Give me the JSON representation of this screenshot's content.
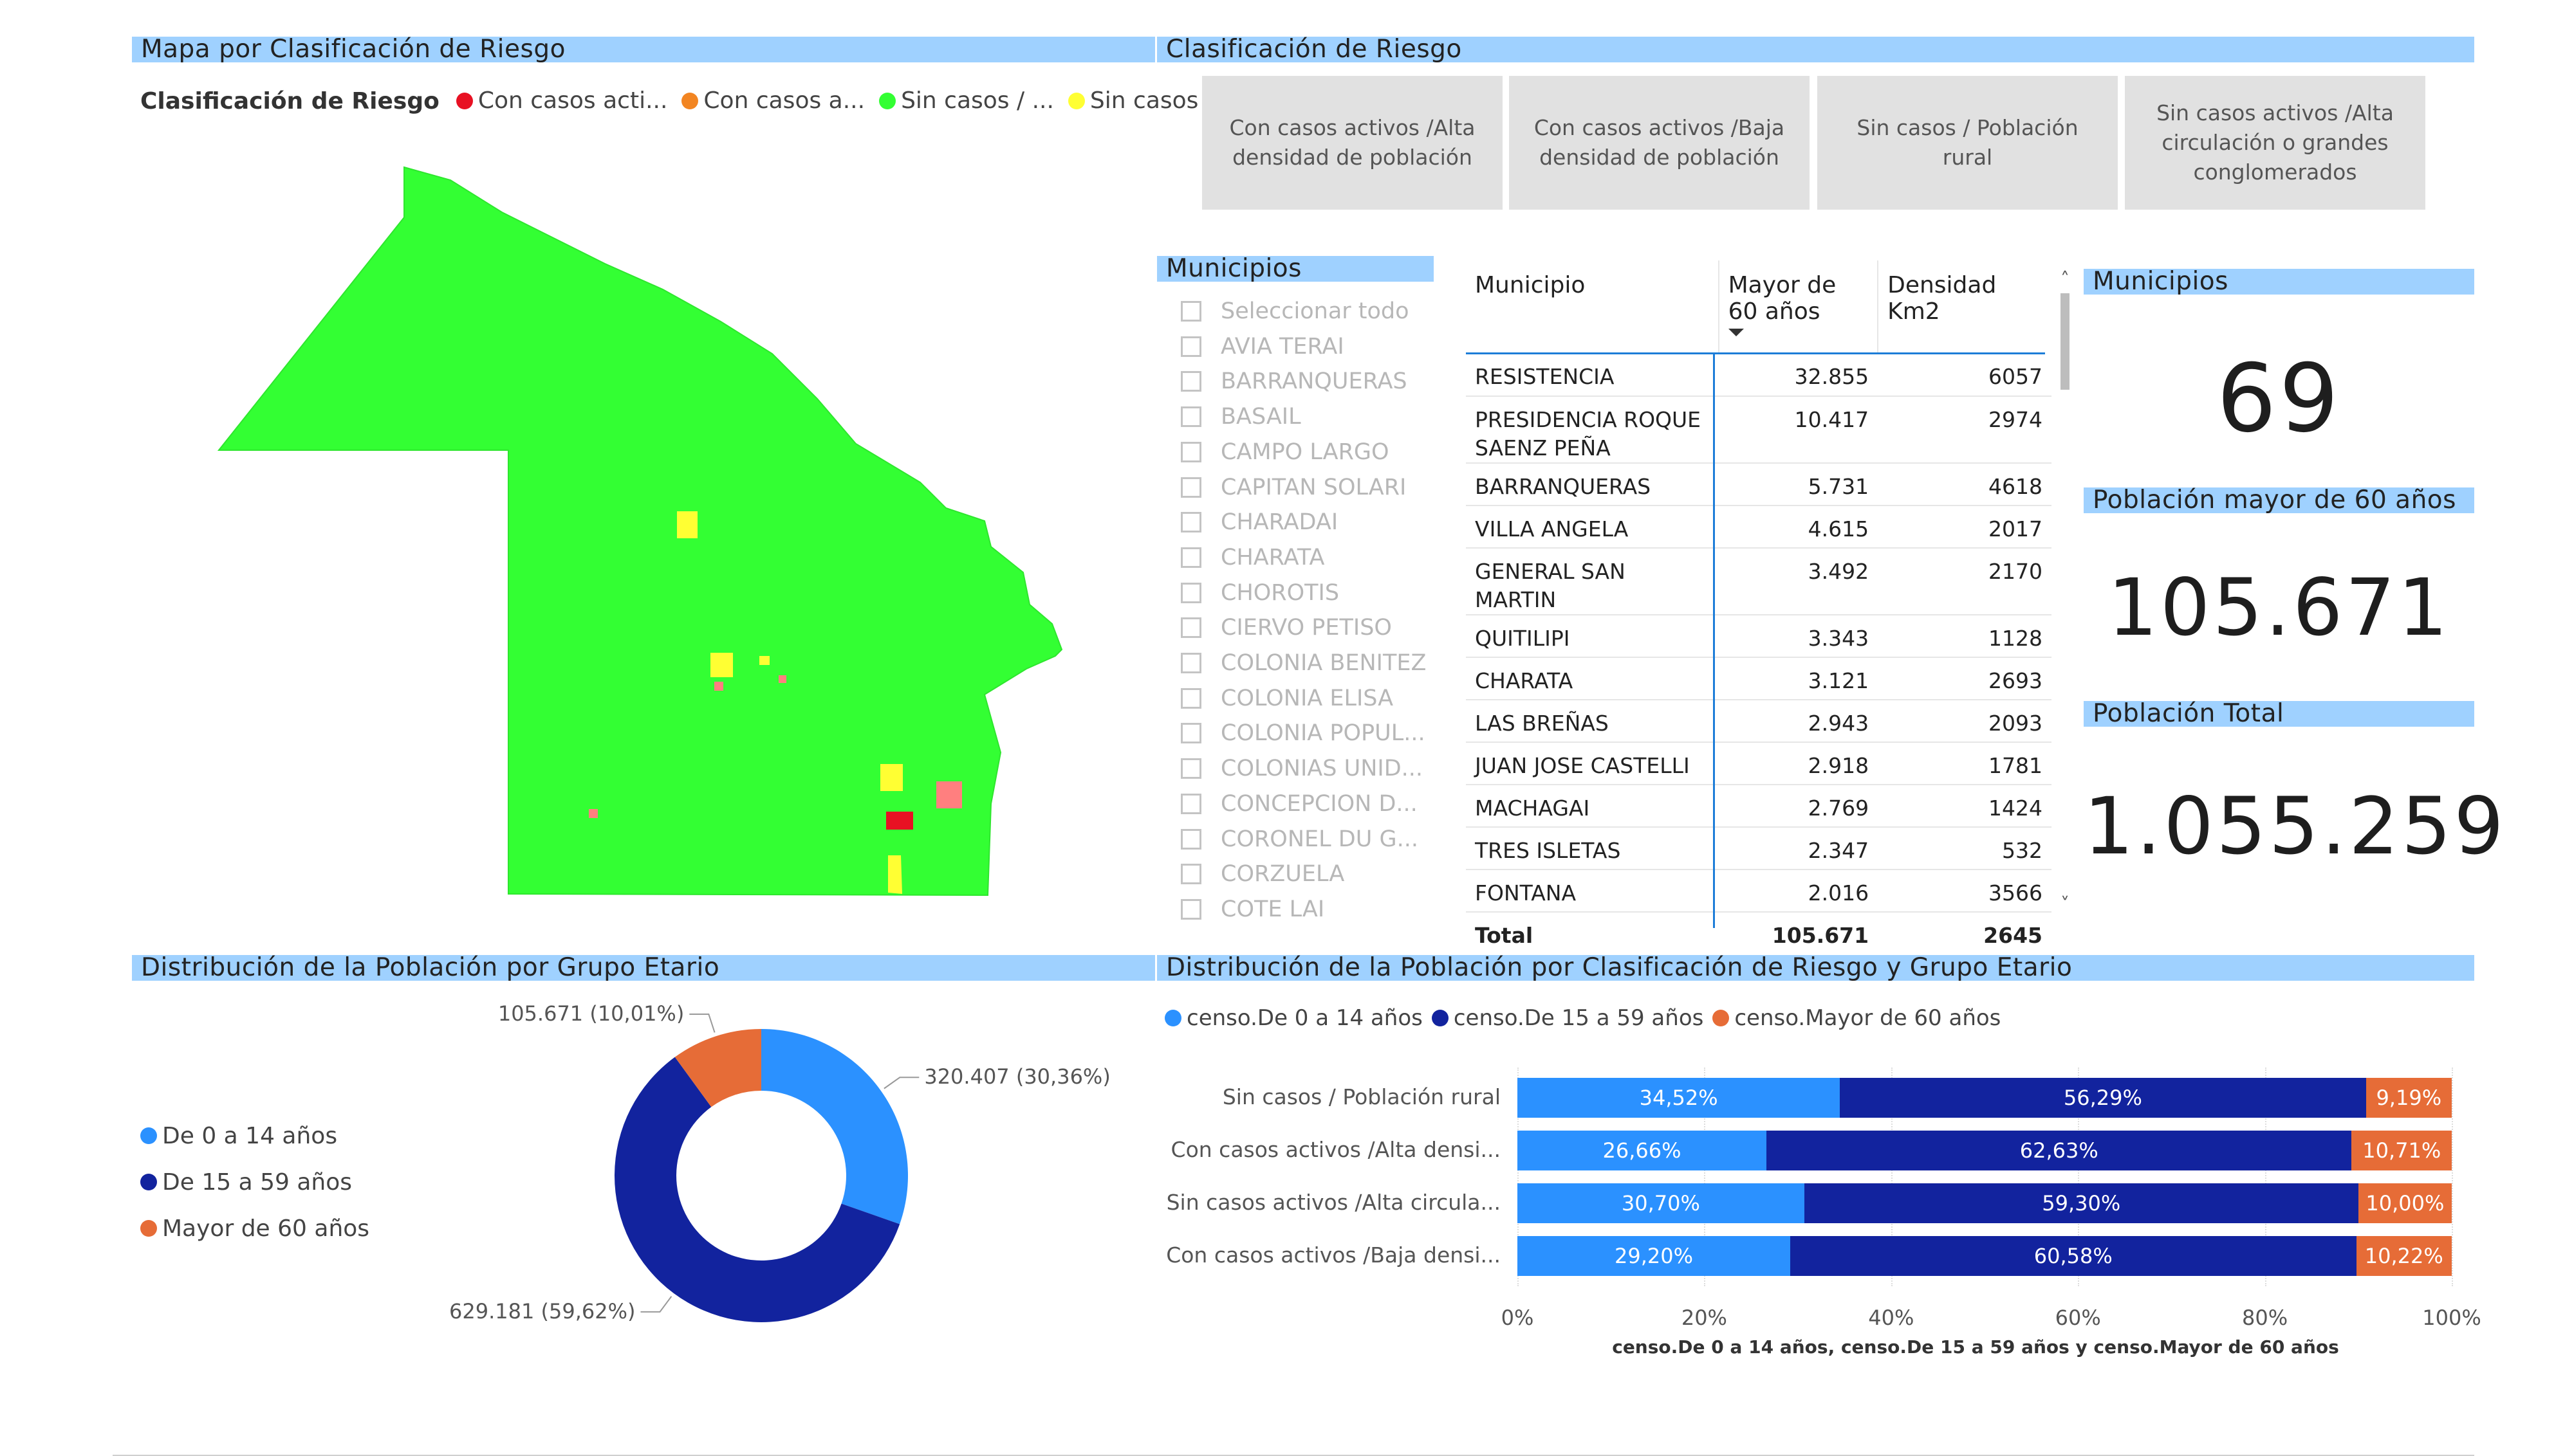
{
  "map": {
    "title": "Mapa por Clasificación de Riesgo",
    "legend_title": "Clasificación de Riesgo",
    "legend": [
      {
        "label": "Con casos acti...",
        "color": "#e81123"
      },
      {
        "label": "Con casos a...",
        "color": "#f28522"
      },
      {
        "label": "Sin casos / ...",
        "color": "#33ff33"
      },
      {
        "label": "Sin casos ...",
        "color": "#ffff33"
      }
    ]
  },
  "risk": {
    "title": "Clasificación de Riesgo",
    "tiles": [
      "Con casos activos /Alta densidad de población",
      "Con casos activos /Baja densidad de población",
      "Sin casos / Población rural",
      "Sin casos activos /Alta circulación o grandes conglomerados"
    ]
  },
  "slicer": {
    "title": "Municipios",
    "items": [
      "Seleccionar todo",
      "AVIA TERAI",
      "BARRANQUERAS",
      "BASAIL",
      "CAMPO LARGO",
      "CAPITAN SOLARI",
      "CHARADAI",
      "CHARATA",
      "CHOROTIS",
      "CIERVO PETISO",
      "COLONIA BENITEZ",
      "COLONIA ELISA",
      "COLONIA POPUL...",
      "COLONIAS UNID...",
      "CONCEPCION D...",
      "CORONEL DU G...",
      "CORZUELA",
      "COTE LAI"
    ]
  },
  "table": {
    "headers": [
      "Municipio",
      "Mayor de 60 años",
      "Densidad Km2"
    ],
    "rows": [
      [
        "RESISTENCIA",
        "32.855",
        "6057"
      ],
      [
        "PRESIDENCIA ROQUE SAENZ PEÑA",
        "10.417",
        "2974"
      ],
      [
        "BARRANQUERAS",
        "5.731",
        "4618"
      ],
      [
        "VILLA ANGELA",
        "4.615",
        "2017"
      ],
      [
        "GENERAL SAN MARTIN",
        "3.492",
        "2170"
      ],
      [
        "QUITILIPI",
        "3.343",
        "1128"
      ],
      [
        "CHARATA",
        "3.121",
        "2693"
      ],
      [
        "LAS BREÑAS",
        "2.943",
        "2093"
      ],
      [
        "JUAN JOSE CASTELLI",
        "2.918",
        "1781"
      ],
      [
        "MACHAGAI",
        "2.769",
        "1424"
      ],
      [
        "TRES ISLETAS",
        "2.347",
        "532"
      ],
      [
        "FONTANA",
        "2.016",
        "3566"
      ]
    ],
    "total": [
      "Total",
      "105.671",
      "2645"
    ]
  },
  "kpis": [
    {
      "title": "Municipios",
      "value": "69"
    },
    {
      "title": "Población mayor de 60 años",
      "value": "105.671"
    },
    {
      "title": "Población Total",
      "value": "1.055.259"
    }
  ],
  "chart_data": [
    {
      "type": "pie",
      "title": "Distribución de la Población por Grupo Etario",
      "categories": [
        "De 0 a 14 años",
        "De 15 a 59 años",
        "Mayor de 60 años"
      ],
      "values": [
        320407,
        629181,
        105671
      ],
      "data_labels": [
        "320.407 (30,36%)",
        "629.181 (59,62%)",
        "105.671 (10,01%)"
      ],
      "colors": [
        "#2b91ff",
        "#12239e",
        "#e66c37"
      ],
      "legend_position": "left"
    },
    {
      "type": "bar",
      "orientation": "horizontal",
      "stacked": "100%",
      "title": "Distribución de la Población por Clasificación de Riesgo y Grupo Etario",
      "categories": [
        "Sin casos / Población rural",
        "Con casos activos /Alta densi...",
        "Sin casos activos /Alta circula...",
        "Con casos activos /Baja densi..."
      ],
      "series": [
        {
          "name": "censo.De 0 a 14 años",
          "color": "#2b91ff",
          "values": [
            34.52,
            26.66,
            30.7,
            29.2
          ],
          "labels": [
            "34,52%",
            "26,66%",
            "30,70%",
            "29,20%"
          ]
        },
        {
          "name": "censo.De 15 a 59 años",
          "color": "#12239e",
          "values": [
            56.29,
            62.63,
            59.3,
            60.58
          ],
          "labels": [
            "56,29%",
            "62,63%",
            "59,30%",
            "60,58%"
          ]
        },
        {
          "name": "censo.Mayor de 60 años",
          "color": "#e66c37",
          "values": [
            9.19,
            10.71,
            10.0,
            10.22
          ],
          "labels": [
            "9,19%",
            "10,71%",
            "10,00%",
            "10,22%"
          ]
        }
      ],
      "x_ticks": [
        "0%",
        "20%",
        "40%",
        "60%",
        "80%",
        "100%"
      ],
      "xlabel": "censo.De 0 a 14 años, censo.De 15 a 59 años y censo.Mayor de 60 años",
      "xlim": [
        0,
        100
      ],
      "legend_position": "top-left"
    }
  ]
}
